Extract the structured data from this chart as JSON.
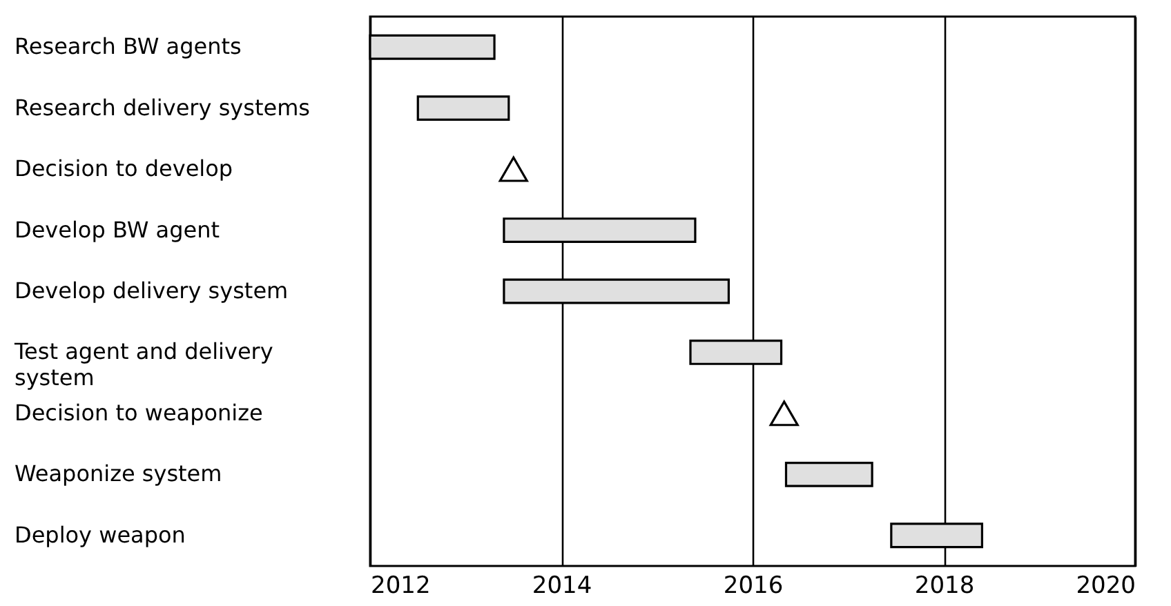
{
  "chart_data": {
    "type": "bar",
    "orientation": "horizontal",
    "categories": [
      "Research BW agents",
      "Research delivery systems",
      "Decision to develop",
      "Develop BW agent",
      "Develop delivery system",
      "Test agent and delivery system",
      "Decision to weaponize",
      "Weaponize system",
      "Deploy weapon"
    ],
    "series": [
      {
        "color": "#e0e0e0",
        "base": [
          2012.0,
          2012.5,
          null,
          2013.4,
          2013.4,
          2015.35,
          null,
          2016.35,
          2017.45
        ],
        "values": [
          1.3,
          0.95,
          null,
          2.0,
          2.35,
          0.95,
          null,
          0.9,
          0.95
        ]
      },
      {
        "type": "scatter",
        "color": "#000000",
        "marker": "triangle",
        "values": [
          null,
          null,
          2013.5,
          null,
          null,
          null,
          2016.33,
          null,
          null
        ]
      }
    ],
    "xlim": [
      2012,
      2020
    ],
    "xticks": [
      2012,
      2014,
      2016,
      2018,
      2020
    ],
    "grid": "x"
  }
}
